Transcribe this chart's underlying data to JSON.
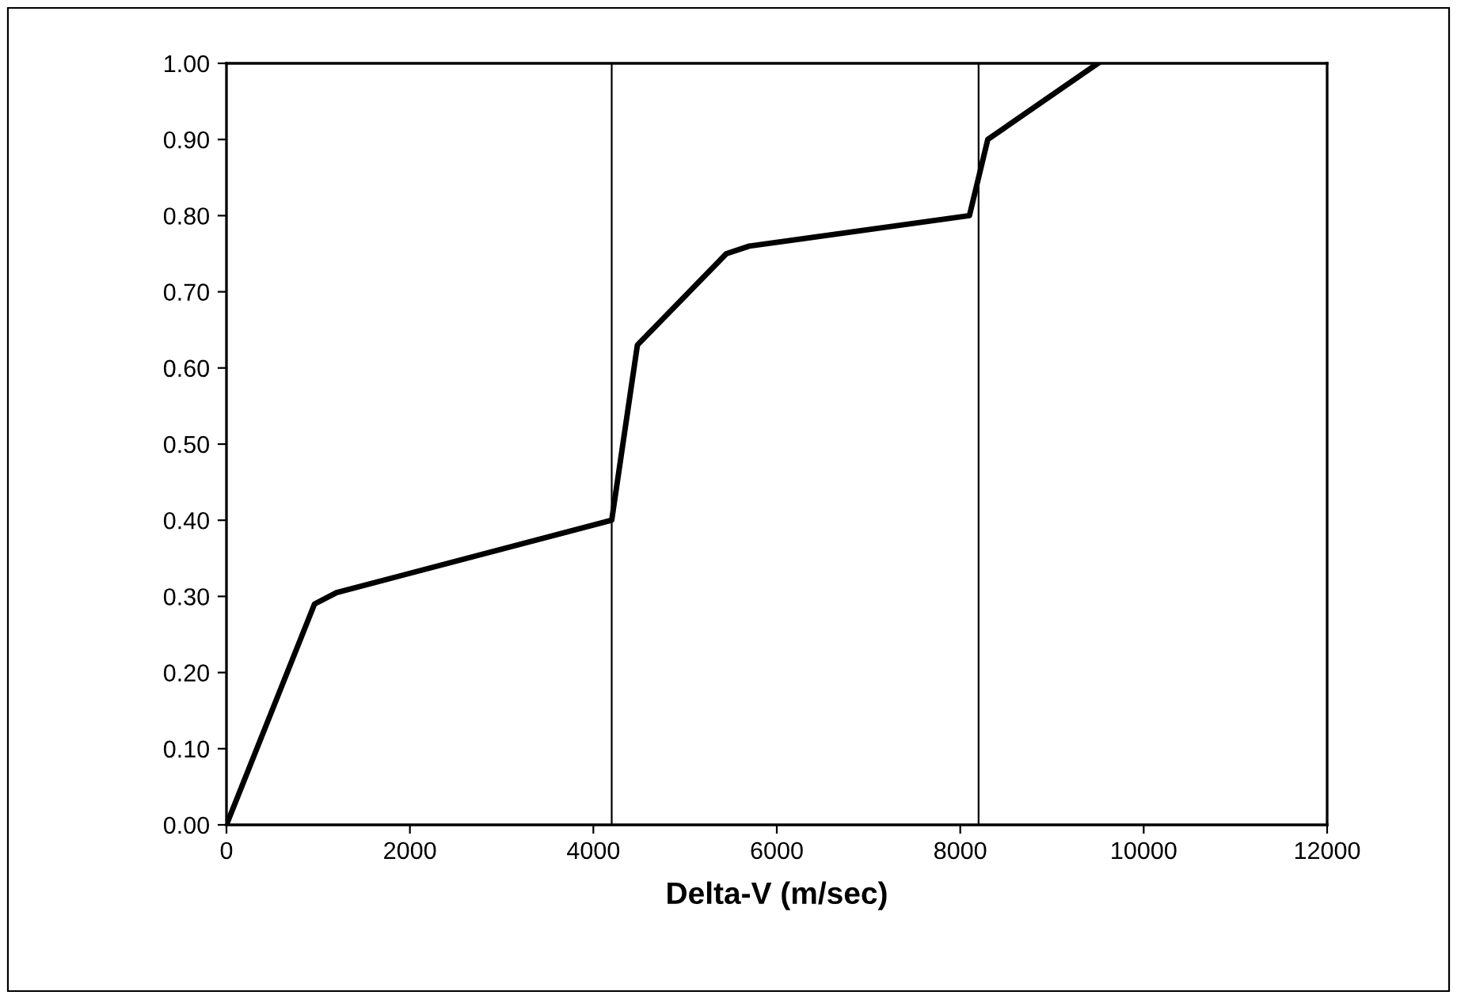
{
  "chart_data": {
    "type": "line",
    "xlabel": "Delta-V (m/sec)",
    "series": [
      {
        "color": "#000000",
        "x": [
          0,
          960,
          1200,
          4200,
          4480,
          5450,
          5700,
          8100,
          8300,
          9500
        ],
        "values": [
          0.0,
          0.29,
          0.305,
          0.4,
          0.63,
          0.75,
          0.76,
          0.8,
          0.9,
          1.0
        ]
      }
    ],
    "xlim": [
      0,
      12000
    ],
    "xticks": [
      0,
      2000,
      4000,
      6000,
      8000,
      10000,
      12000
    ],
    "ylim": [
      0,
      1
    ],
    "yticks": [
      {
        "value": 0,
        "label": "0.00"
      },
      {
        "value": 0.1,
        "label": "0.10"
      },
      {
        "value": 0.2,
        "label": "0.20"
      },
      {
        "value": 0.3,
        "label": "0.30"
      },
      {
        "value": 0.4,
        "label": "0.40"
      },
      {
        "value": 0.5,
        "label": "0.50"
      },
      {
        "value": 0.6,
        "label": "0.60"
      },
      {
        "value": 0.7,
        "label": "0.70"
      },
      {
        "value": 0.8,
        "label": "0.80"
      },
      {
        "value": 0.9,
        "label": "0.90"
      },
      {
        "value": 1.0,
        "label": "1.00"
      }
    ],
    "ref_lines": [
      {
        "axis": "x",
        "value": 4200,
        "color": "#000000"
      },
      {
        "axis": "x",
        "value": 8200,
        "color": "#000000"
      }
    ],
    "grid": false,
    "legend": false,
    "marker": "none",
    "line_style": "solid"
  }
}
